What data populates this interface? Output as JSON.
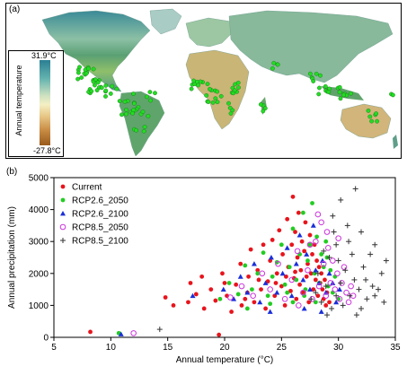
{
  "panel_a": {
    "label": "(a)",
    "legend": {
      "title": "Annual temperature",
      "max_label": "31.9°C",
      "min_label": "-27.8°C"
    },
    "point_color": "#22dd22"
  },
  "panel_b": {
    "label": "(b)"
  },
  "chart_data": {
    "type": "scatter",
    "xlabel": "Annual temperature (°C)",
    "ylabel": "Annual precipitation (mm)",
    "xlim": [
      5,
      35
    ],
    "ylim": [
      0,
      5000
    ],
    "xticks": [
      5,
      10,
      15,
      20,
      25,
      30,
      35
    ],
    "yticks": [
      0,
      1000,
      2000,
      3000,
      4000,
      5000
    ],
    "legend_position": "top-left",
    "series": [
      {
        "name": "Current",
        "color": "#e8141c",
        "marker": "circle",
        "points": [
          [
            8.2,
            170
          ],
          [
            19.5,
            80
          ],
          [
            14.8,
            1250
          ],
          [
            15.5,
            1000
          ],
          [
            16.8,
            1100
          ],
          [
            17.5,
            1350
          ],
          [
            18.2,
            900
          ],
          [
            18.8,
            1500
          ],
          [
            19.2,
            1150
          ],
          [
            19.8,
            2000
          ],
          [
            20.2,
            1300
          ],
          [
            20.6,
            800
          ],
          [
            21.0,
            1650
          ],
          [
            21.4,
            2300
          ],
          [
            21.8,
            1200
          ],
          [
            22.1,
            1900
          ],
          [
            22.3,
            2750
          ],
          [
            22.6,
            1100
          ],
          [
            22.9,
            2100
          ],
          [
            23.2,
            1500
          ],
          [
            23.4,
            2900
          ],
          [
            23.6,
            900
          ],
          [
            23.8,
            1750
          ],
          [
            24.0,
            2400
          ],
          [
            24.2,
            3050
          ],
          [
            24.4,
            1300
          ],
          [
            24.6,
            2000
          ],
          [
            24.8,
            3350
          ],
          [
            25.0,
            1600
          ],
          [
            25.1,
            2600
          ],
          [
            25.3,
            1000
          ],
          [
            25.5,
            3700
          ],
          [
            25.6,
            2200
          ],
          [
            25.8,
            1450
          ],
          [
            25.9,
            2900
          ],
          [
            26.0,
            4400
          ],
          [
            26.1,
            1850
          ],
          [
            26.2,
            3300
          ],
          [
            26.3,
            1200
          ],
          [
            26.4,
            2500
          ],
          [
            26.5,
            3900
          ],
          [
            26.6,
            1650
          ],
          [
            26.7,
            2100
          ],
          [
            26.8,
            3000
          ],
          [
            26.9,
            1400
          ],
          [
            27.0,
            2700
          ],
          [
            27.1,
            3600
          ],
          [
            27.2,
            1900
          ],
          [
            27.3,
            2300
          ],
          [
            27.4,
            1100
          ],
          [
            27.5,
            3200
          ],
          [
            27.6,
            2000
          ],
          [
            27.7,
            2600
          ],
          [
            27.8,
            1500
          ],
          [
            27.9,
            2900
          ],
          [
            28.0,
            1800
          ],
          [
            28.1,
            2400
          ],
          [
            28.2,
            1300
          ],
          [
            28.3,
            2200
          ],
          [
            28.4,
            1700
          ],
          [
            28.5,
            2000
          ],
          [
            28.6,
            1500
          ],
          [
            28.7,
            1200
          ],
          [
            28.8,
            1800
          ],
          [
            28.9,
            1000
          ],
          [
            29.0,
            1400
          ],
          [
            29.2,
            1100
          ],
          [
            22.0,
            1400
          ],
          [
            23.0,
            1800
          ],
          [
            24.5,
            1700
          ],
          [
            25.4,
            1900
          ],
          [
            26.2,
            2050
          ],
          [
            18.0,
            1900
          ],
          [
            20.0,
            1700
          ],
          [
            21.5,
            1000
          ],
          [
            17.0,
            1700
          ]
        ]
      },
      {
        "name": "RCP2.6_2050",
        "color": "#22cc22",
        "marker": "circle",
        "points": [
          [
            10.7,
            130
          ],
          [
            19.6,
            1200
          ],
          [
            20.4,
            1700
          ],
          [
            21.2,
            1350
          ],
          [
            21.8,
            2250
          ],
          [
            22.4,
            1500
          ],
          [
            22.9,
            2000
          ],
          [
            23.4,
            2650
          ],
          [
            23.8,
            1300
          ],
          [
            24.2,
            1900
          ],
          [
            24.6,
            2350
          ],
          [
            25.0,
            2900
          ],
          [
            25.3,
            1650
          ],
          [
            25.7,
            2200
          ],
          [
            26.0,
            3400
          ],
          [
            26.3,
            1800
          ],
          [
            26.6,
            2600
          ],
          [
            26.9,
            3900
          ],
          [
            27.1,
            1500
          ],
          [
            27.3,
            2400
          ],
          [
            27.5,
            2900
          ],
          [
            27.7,
            4200
          ],
          [
            27.9,
            2000
          ],
          [
            28.1,
            3150
          ],
          [
            28.3,
            1700
          ],
          [
            28.5,
            2600
          ],
          [
            28.7,
            2200
          ],
          [
            28.9,
            3000
          ],
          [
            29.1,
            1600
          ],
          [
            29.3,
            2100
          ],
          [
            29.5,
            1400
          ],
          [
            29.7,
            1900
          ],
          [
            30.0,
            1200
          ],
          [
            24.0,
            1050
          ],
          [
            26.0,
            1100
          ],
          [
            22.0,
            900
          ],
          [
            28.0,
            1100
          ],
          [
            27.0,
            1300
          ],
          [
            25.5,
            1400
          ],
          [
            29.0,
            2500
          ]
        ]
      },
      {
        "name": "RCP2.6_2100",
        "color": "#1a2fd8",
        "marker": "triangle",
        "points": [
          [
            10.9,
            100
          ],
          [
            17.2,
            1300
          ],
          [
            19.9,
            1500
          ],
          [
            20.8,
            1200
          ],
          [
            21.4,
            1900
          ],
          [
            22.0,
            1400
          ],
          [
            22.6,
            2300
          ],
          [
            23.1,
            1100
          ],
          [
            23.6,
            1700
          ],
          [
            24.1,
            2500
          ],
          [
            24.6,
            1400
          ],
          [
            25.1,
            2000
          ],
          [
            25.5,
            2800
          ],
          [
            25.9,
            1300
          ],
          [
            26.3,
            2300
          ],
          [
            26.6,
            3200
          ],
          [
            26.9,
            1800
          ],
          [
            27.2,
            2600
          ],
          [
            27.5,
            1500
          ],
          [
            27.8,
            3500
          ],
          [
            28.0,
            2100
          ],
          [
            28.3,
            1700
          ],
          [
            28.6,
            2400
          ],
          [
            28.9,
            1400
          ],
          [
            29.2,
            2000
          ],
          [
            29.5,
            1700
          ],
          [
            29.8,
            1100
          ],
          [
            30.1,
            1500
          ],
          [
            24.0,
            800
          ],
          [
            27.0,
            900
          ],
          [
            28.5,
            800
          ]
        ]
      },
      {
        "name": "RCP8.5_2050",
        "color": "#cc33dd",
        "marker": "circle-open",
        "points": [
          [
            12.0,
            130
          ],
          [
            20.5,
            1250
          ],
          [
            21.5,
            1600
          ],
          [
            22.5,
            1300
          ],
          [
            23.3,
            2000
          ],
          [
            24.0,
            1500
          ],
          [
            24.7,
            2300
          ],
          [
            25.3,
            1200
          ],
          [
            25.9,
            1800
          ],
          [
            26.4,
            2700
          ],
          [
            26.9,
            1400
          ],
          [
            27.3,
            2100
          ],
          [
            27.7,
            1200
          ],
          [
            28.0,
            3000
          ],
          [
            28.3,
            1600
          ],
          [
            28.5,
            3600
          ],
          [
            28.7,
            2300
          ],
          [
            28.9,
            1300
          ],
          [
            29.1,
            2800
          ],
          [
            29.3,
            1700
          ],
          [
            29.5,
            2400
          ],
          [
            29.7,
            1500
          ],
          [
            29.9,
            2000
          ],
          [
            30.1,
            1200
          ],
          [
            30.3,
            1700
          ],
          [
            30.5,
            2200
          ],
          [
            30.7,
            1400
          ],
          [
            30.9,
            1100
          ],
          [
            31.1,
            1600
          ],
          [
            31.3,
            1300
          ],
          [
            28.2,
            3850
          ],
          [
            29.0,
            3300
          ],
          [
            27.5,
            2900
          ],
          [
            26.5,
            1000
          ],
          [
            30.0,
            3100
          ]
        ]
      },
      {
        "name": "RCP8.5_2100",
        "color": "#333333",
        "marker": "plus",
        "points": [
          [
            14.3,
            250
          ],
          [
            31.5,
            4650
          ],
          [
            30.2,
            4300
          ],
          [
            29.5,
            3800
          ],
          [
            30.8,
            3500
          ],
          [
            32.0,
            3300
          ],
          [
            33.2,
            2900
          ],
          [
            34.2,
            2400
          ],
          [
            33.8,
            2000
          ],
          [
            33.0,
            1600
          ],
          [
            32.5,
            1200
          ],
          [
            32.0,
            900
          ],
          [
            31.6,
            700
          ],
          [
            31.2,
            2600
          ],
          [
            30.6,
            2100
          ],
          [
            30.2,
            1700
          ],
          [
            29.8,
            1300
          ],
          [
            29.4,
            900
          ],
          [
            28.9,
            1600
          ],
          [
            28.5,
            1100
          ],
          [
            28.2,
            2000
          ],
          [
            29.2,
            2500
          ],
          [
            29.8,
            2900
          ],
          [
            30.4,
            1000
          ],
          [
            31.0,
            1300
          ],
          [
            31.4,
            1800
          ],
          [
            32.2,
            2200
          ],
          [
            32.8,
            2600
          ],
          [
            33.5,
            1500
          ],
          [
            34.0,
            1100
          ],
          [
            28.0,
            1400
          ],
          [
            28.7,
            2700
          ],
          [
            29.6,
            3300
          ],
          [
            30.9,
            3000
          ],
          [
            31.8,
            1500
          ],
          [
            32.4,
            1800
          ],
          [
            33.2,
            1300
          ],
          [
            27.6,
            1200
          ],
          [
            29.0,
            700
          ],
          [
            30.0,
            2400
          ]
        ]
      }
    ]
  }
}
